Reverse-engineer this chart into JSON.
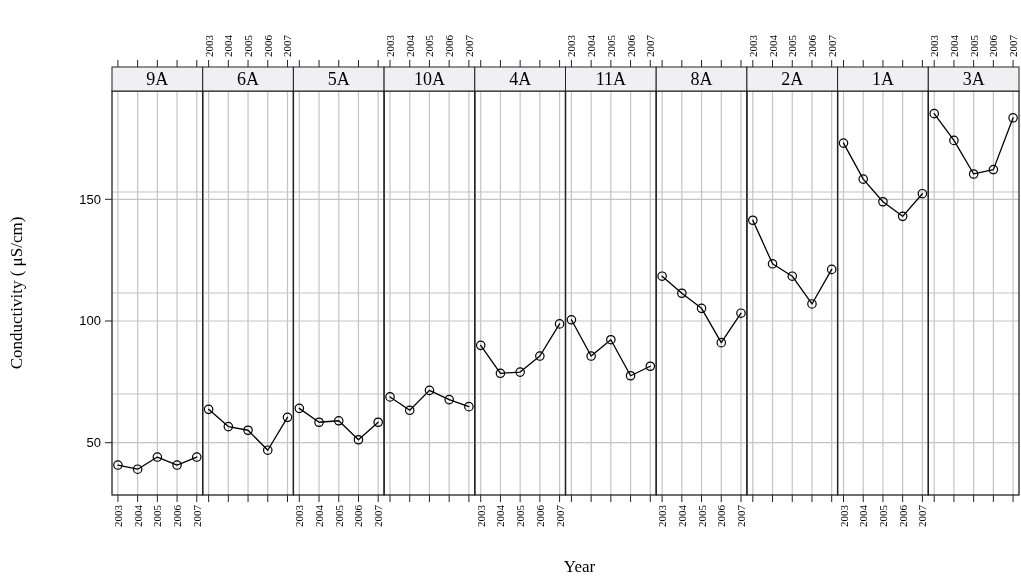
{
  "chart_data": [
    {
      "type": "line",
      "title": "9A",
      "ylabel": "Conductivity ( μS/cm)",
      "x": [
        2003,
        2004,
        2005,
        2006,
        2007
      ],
      "series": [
        {
          "color": "#000000",
          "values": [
            40.8,
            39.1,
            44.1,
            40.8,
            44.1
          ]
        }
      ],
      "xlim": [
        2002.7,
        2007.3
      ],
      "xticks": [
        2003,
        2004,
        2005,
        2006,
        2007
      ],
      "ylim": [
        28.5,
        194.5
      ],
      "yticks": [
        50,
        100,
        150,
        {
          "value": 70,
          "label": null
        },
        {
          "value": 111.5,
          "label": null
        },
        {
          "value": 153,
          "label": null
        }
      ],
      "grid": true,
      "marker": "circle"
    },
    {
      "type": "line",
      "title": "6A",
      "x": [
        2003,
        2004,
        2005,
        2006,
        2007
      ],
      "series": [
        {
          "color": "#000000",
          "values": [
            63.7,
            56.6,
            55.1,
            46.9,
            60.4
          ]
        }
      ],
      "xlim": [
        2002.7,
        2007.3
      ],
      "xticks": [
        2003,
        2004,
        2005,
        2006,
        2007
      ],
      "ylim": [
        28.5,
        194.5
      ],
      "yticks": [
        50,
        100,
        150,
        {
          "value": 70,
          "label": null
        },
        {
          "value": 111.5,
          "label": null
        },
        {
          "value": 153,
          "label": null
        }
      ],
      "grid": true,
      "marker": "circle",
      "tick_labels": "x"
    },
    {
      "type": "line",
      "title": "5A",
      "x": [
        2003,
        2004,
        2005,
        2006,
        2007
      ],
      "series": [
        {
          "color": "#000000",
          "values": [
            64.1,
            58.4,
            59.0,
            51.2,
            58.4
          ]
        }
      ],
      "xlim": [
        2002.7,
        2007.3
      ],
      "xticks": [
        2003,
        2004,
        2005,
        2006,
        2007
      ],
      "ylim": [
        28.5,
        194.5
      ],
      "yticks": [
        50,
        100,
        150,
        {
          "value": 70,
          "label": null
        },
        {
          "value": 111.5,
          "label": null
        },
        {
          "value": 153,
          "label": null
        }
      ],
      "grid": true,
      "marker": "circle",
      "tick_labels": "x"
    },
    {
      "type": "line",
      "title": "10A",
      "x": [
        2003,
        2004,
        2005,
        2006,
        2007
      ],
      "series": [
        {
          "color": "#000000",
          "values": [
            68.8,
            63.3,
            71.5,
            67.7,
            64.8
          ]
        }
      ],
      "xlim": [
        2002.7,
        2007.3
      ],
      "xticks": [
        2003,
        2004,
        2005,
        2006,
        2007
      ],
      "ylim": [
        28.5,
        194.5
      ],
      "yticks": [
        50,
        100,
        150,
        {
          "value": 70,
          "label": null
        },
        {
          "value": 111.5,
          "label": null
        },
        {
          "value": 153,
          "label": null
        }
      ],
      "grid": true,
      "marker": "circle",
      "tick_labels": "x"
    },
    {
      "type": "line",
      "title": "4A",
      "x": [
        2003,
        2004,
        2005,
        2006,
        2007
      ],
      "series": [
        {
          "color": "#000000",
          "values": [
            90.0,
            78.5,
            79.0,
            85.6,
            98.8
          ]
        }
      ],
      "xlim": [
        2002.7,
        2007.3
      ],
      "xticks": [
        2003,
        2004,
        2005,
        2006,
        2007
      ],
      "ylim": [
        28.5,
        194.5
      ],
      "yticks": [
        50,
        100,
        150,
        {
          "value": 70,
          "label": null
        },
        {
          "value": 111.5,
          "label": null
        },
        {
          "value": 153,
          "label": null
        }
      ],
      "grid": true,
      "marker": "circle",
      "tick_labels": "x"
    },
    {
      "type": "line",
      "title": "11A",
      "xlabel": "Year",
      "x": [
        2003,
        2004,
        2005,
        2006,
        2007
      ],
      "series": [
        {
          "color": "#000000",
          "values": [
            100.5,
            85.6,
            92.3,
            77.5,
            81.4
          ]
        }
      ],
      "xlim": [
        2002.7,
        2007.3
      ],
      "xticks": [
        2003,
        2004,
        2005,
        2006,
        2007
      ],
      "ylim": [
        28.5,
        194.5
      ],
      "yticks": [
        50,
        100,
        150,
        {
          "value": 70,
          "label": null
        },
        {
          "value": 111.5,
          "label": null
        },
        {
          "value": 153,
          "label": null
        }
      ],
      "grid": true,
      "marker": "circle",
      "tick_labels": "x"
    },
    {
      "type": "line",
      "title": "8A",
      "x": [
        2003,
        2004,
        2005,
        2006,
        2007
      ],
      "series": [
        {
          "color": "#000000",
          "values": [
            118.4,
            111.4,
            105.2,
            91.1,
            103.2
          ]
        }
      ],
      "xlim": [
        2002.7,
        2007.3
      ],
      "xticks": [
        2003,
        2004,
        2005,
        2006,
        2007
      ],
      "ylim": [
        28.5,
        194.5
      ],
      "yticks": [
        50,
        100,
        150,
        {
          "value": 70,
          "label": null
        },
        {
          "value": 111.5,
          "label": null
        },
        {
          "value": 153,
          "label": null
        }
      ],
      "grid": true,
      "marker": "circle",
      "tick_labels": "x"
    },
    {
      "type": "line",
      "title": "2A",
      "x": [
        2003,
        2004,
        2005,
        2006,
        2007
      ],
      "series": [
        {
          "color": "#000000",
          "values": [
            141.4,
            123.5,
            118.4,
            107.0,
            121.2
          ]
        }
      ],
      "xlim": [
        2002.7,
        2007.3
      ],
      "xticks": [
        2003,
        2004,
        2005,
        2006,
        2007
      ],
      "ylim": [
        28.5,
        194.5
      ],
      "yticks": [
        50,
        100,
        150,
        {
          "value": 70,
          "label": null
        },
        {
          "value": 111.5,
          "label": null
        },
        {
          "value": 153,
          "label": null
        }
      ],
      "grid": true,
      "marker": "circle",
      "tick_labels": "x"
    },
    {
      "type": "line",
      "title": "1A",
      "x": [
        2003,
        2004,
        2005,
        2006,
        2007
      ],
      "series": [
        {
          "color": "#000000",
          "values": [
            173.1,
            158.3,
            149.0,
            143.0,
            152.3
          ]
        }
      ],
      "xlim": [
        2002.7,
        2007.3
      ],
      "xticks": [
        2003,
        2004,
        2005,
        2006,
        2007
      ],
      "ylim": [
        28.5,
        194.5
      ],
      "yticks": [
        50,
        100,
        150,
        {
          "value": 70,
          "label": null
        },
        {
          "value": 111.5,
          "label": null
        },
        {
          "value": 153,
          "label": null
        }
      ],
      "grid": true,
      "marker": "circle",
      "tick_labels": "x"
    },
    {
      "type": "line",
      "title": "3A",
      "x": [
        2003,
        2004,
        2005,
        2006,
        2007
      ],
      "series": [
        {
          "color": "#000000",
          "values": [
            185.2,
            174.2,
            160.4,
            162.2,
            183.5
          ]
        }
      ],
      "xlim": [
        2002.7,
        2007.3
      ],
      "xticks": [
        2003,
        2004,
        2005,
        2006,
        2007
      ],
      "ylim": [
        28.5,
        194.5
      ],
      "yticks": [
        50,
        100,
        150,
        {
          "value": 70,
          "label": null
        },
        {
          "value": 111.5,
          "label": null
        },
        {
          "value": 153,
          "label": null
        }
      ],
      "grid": true,
      "marker": "circle",
      "tick_labels": "x"
    }
  ]
}
